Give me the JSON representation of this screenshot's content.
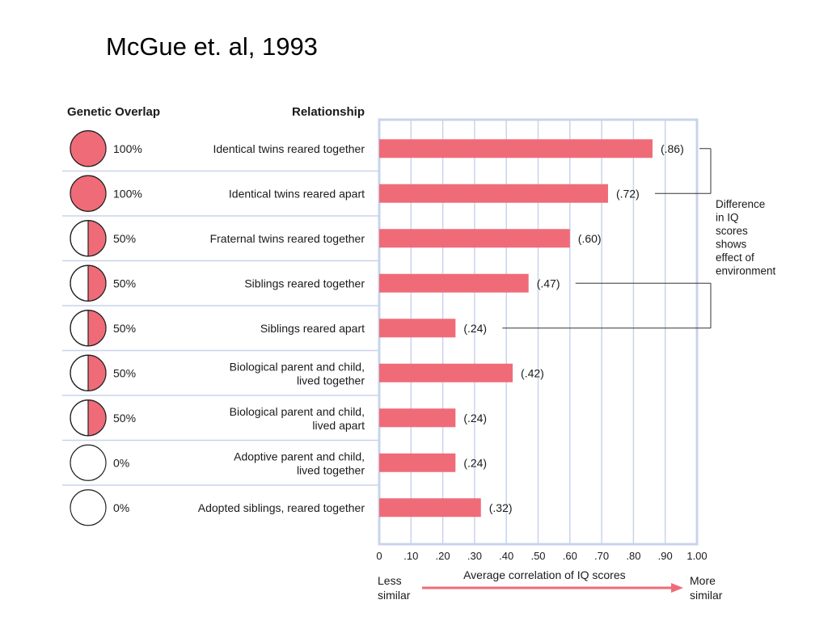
{
  "slide_title": "McGue et. al, 1993",
  "colors": {
    "bar": "#f06b78",
    "grid": "#c8d4ec",
    "frame": "#c8d4ec",
    "circle_fill": "#f06b78",
    "circle_stroke": "#222222",
    "arrow": "#f06b78"
  },
  "chart_data": {
    "type": "bar",
    "orientation": "horizontal",
    "title": "",
    "column_headers": {
      "overlap": "Genetic Overlap",
      "relationship": "Relationship"
    },
    "rows": [
      {
        "relationship_lines": [
          "Identical twins reared together"
        ],
        "overlap": "100%",
        "overlap_fraction": 1.0,
        "value": 0.86,
        "value_label": "(.86)"
      },
      {
        "relationship_lines": [
          "Identical twins reared apart"
        ],
        "overlap": "100%",
        "overlap_fraction": 1.0,
        "value": 0.72,
        "value_label": "(.72)"
      },
      {
        "relationship_lines": [
          "Fraternal twins reared together"
        ],
        "overlap": "50%",
        "overlap_fraction": 0.5,
        "value": 0.6,
        "value_label": "(.60)"
      },
      {
        "relationship_lines": [
          "Siblings reared together"
        ],
        "overlap": "50%",
        "overlap_fraction": 0.5,
        "value": 0.47,
        "value_label": "(.47)"
      },
      {
        "relationship_lines": [
          "Siblings reared apart"
        ],
        "overlap": "50%",
        "overlap_fraction": 0.5,
        "value": 0.24,
        "value_label": "(.24)"
      },
      {
        "relationship_lines": [
          "Biological parent and child,",
          "lived together"
        ],
        "overlap": "50%",
        "overlap_fraction": 0.5,
        "value": 0.42,
        "value_label": "(.42)"
      },
      {
        "relationship_lines": [
          "Biological parent and child,",
          "lived apart"
        ],
        "overlap": "50%",
        "overlap_fraction": 0.5,
        "value": 0.24,
        "value_label": "(.24)"
      },
      {
        "relationship_lines": [
          "Adoptive parent and child,",
          "lived together"
        ],
        "overlap": "0%",
        "overlap_fraction": 0.0,
        "value": 0.24,
        "value_label": "(.24)"
      },
      {
        "relationship_lines": [
          "Adopted siblings, reared together"
        ],
        "overlap": "0%",
        "overlap_fraction": 0.0,
        "value": 0.32,
        "value_label": "(.32)"
      }
    ],
    "xlim": [
      0,
      1.0
    ],
    "x_ticks": [
      {
        "value": 0,
        "label": "0"
      },
      {
        "value": 0.1,
        "label": ".10"
      },
      {
        "value": 0.2,
        "label": ".20"
      },
      {
        "value": 0.3,
        "label": ".30"
      },
      {
        "value": 0.4,
        "label": ".40"
      },
      {
        "value": 0.5,
        "label": ".50"
      },
      {
        "value": 0.6,
        "label": ".60"
      },
      {
        "value": 0.7,
        "label": ".70"
      },
      {
        "value": 0.8,
        "label": ".80"
      },
      {
        "value": 0.9,
        "label": ".90"
      },
      {
        "value": 1.0,
        "label": "1.00"
      }
    ],
    "xlabel": "Average correlation of IQ scores",
    "grid": true,
    "scale_ends": {
      "left_lines": [
        "Less",
        "similar"
      ],
      "right_lines": [
        "More",
        "similar"
      ]
    },
    "annotation": {
      "lines": [
        "Difference",
        "in IQ",
        "scores",
        "shows",
        "effect of",
        "environment"
      ],
      "brackets": [
        [
          0,
          1
        ],
        [
          3,
          4
        ]
      ]
    }
  }
}
